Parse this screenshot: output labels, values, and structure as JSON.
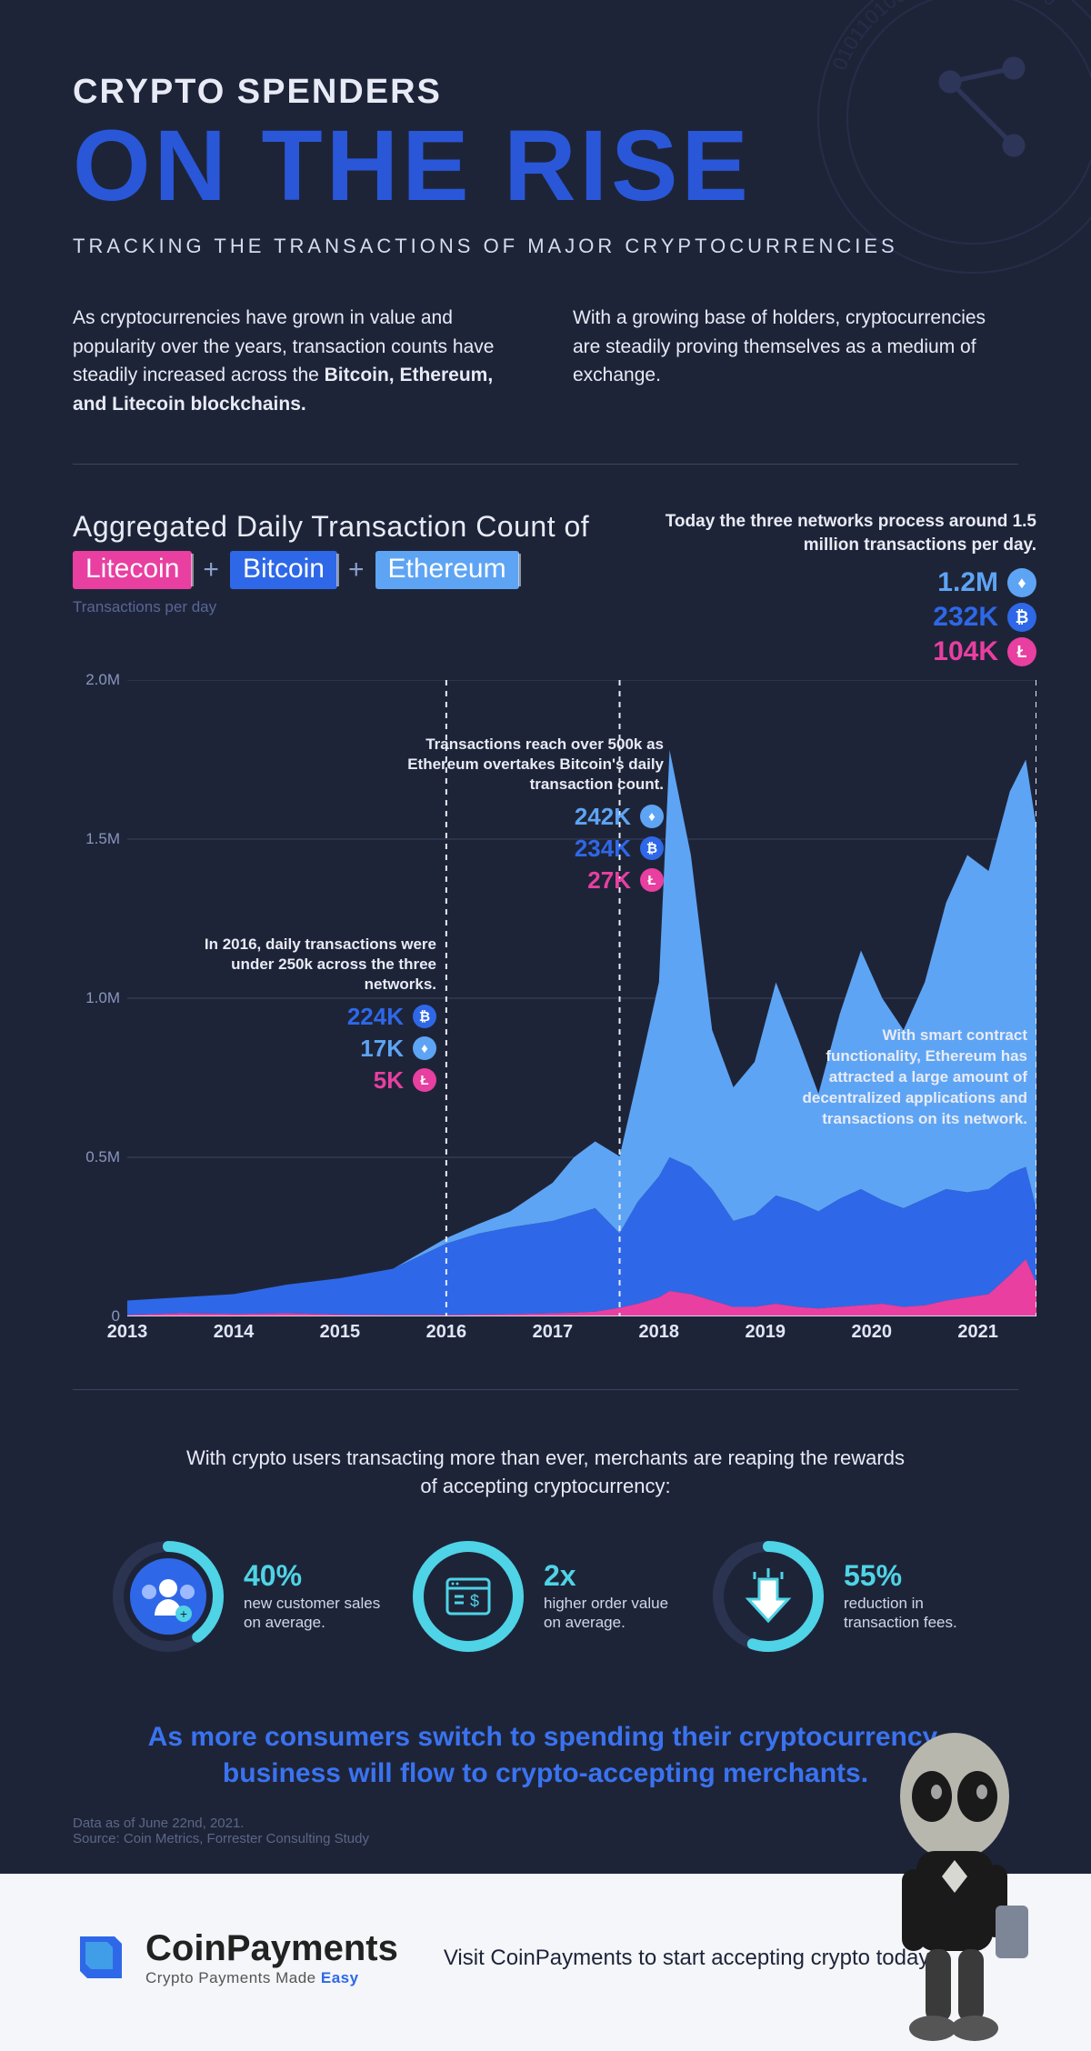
{
  "colors": {
    "bg": "#1e2438",
    "title_blue": "#2957d8",
    "bitcoin": "#2e68e8",
    "ethereum": "#5ea4f4",
    "litecoin": "#e83fa1",
    "cyan": "#4fd3e6",
    "grid": "#3a445f",
    "text": "#e8ebf5",
    "muted": "#8896bc"
  },
  "header": {
    "pre": "CRYPTO SPENDERS",
    "main": "ON THE RISE",
    "sub": "TRACKING THE TRANSACTIONS OF MAJOR CRYPTOCURRENCIES"
  },
  "intro": {
    "left_a": "As cryptocurrencies have grown in value and popularity over the years, transaction counts have steadily increased across the ",
    "left_b": "Bitcoin, Ethereum, and Litecoin blockchains.",
    "right": "With a growing base of holders, cryptocurrencies are steadily proving themselves as a medium of exchange."
  },
  "chart": {
    "title": "Aggregated Daily Transaction Count of",
    "pills": [
      {
        "label": "Litecoin",
        "color": "#e83fa1"
      },
      {
        "label": "Bitcoin",
        "color": "#2e68e8"
      },
      {
        "label": "Ethereum",
        "color": "#5ea4f4"
      }
    ],
    "y_axis_label": "Transactions per day",
    "y_ticks": [
      "0",
      "0.5M",
      "1.0M",
      "1.5M",
      "2.0M"
    ],
    "y_max": 2.0,
    "x_years": [
      "2013",
      "2014",
      "2015",
      "2016",
      "2017",
      "2018",
      "2019",
      "2020",
      "2021"
    ],
    "today": {
      "lead": "Today the three networks process around 1.5 million transactions per day.",
      "stats": [
        {
          "val": "1.2M",
          "sym": "♦",
          "color": "#5ea4f4"
        },
        {
          "val": "232K",
          "sym": "₿",
          "color": "#2e68e8"
        },
        {
          "val": "104K",
          "sym": "Ł",
          "color": "#e83fa1"
        }
      ]
    },
    "mid": {
      "lead": "Transactions reach over 500k as Ethereum overtakes Bitcoin's daily transaction count.",
      "stats": [
        {
          "val": "242K",
          "sym": "♦",
          "color": "#5ea4f4"
        },
        {
          "val": "234K",
          "sym": "₿",
          "color": "#2e68e8"
        },
        {
          "val": "27K",
          "sym": "Ł",
          "color": "#e83fa1"
        }
      ]
    },
    "early": {
      "lead": "In 2016, daily transactions were under 250k across the three networks.",
      "stats": [
        {
          "val": "224K",
          "sym": "₿",
          "color": "#2e68e8"
        },
        {
          "val": "17K",
          "sym": "♦",
          "color": "#5ea4f4"
        },
        {
          "val": "5K",
          "sym": "Ł",
          "color": "#e83fa1"
        }
      ]
    },
    "blurb": "With smart contract functionality, Ethereum has attracted a large amount of decentralized applications and transactions on its network.",
    "series": {
      "note": "stacked totals in millions — litecoin bottom, bitcoin mid, ethereum top",
      "x_index": [
        0,
        0.5,
        1,
        1.5,
        2,
        2.5,
        3,
        3.3,
        3.6,
        4,
        4.2,
        4.4,
        4.63,
        4.8,
        5,
        5.1,
        5.3,
        5.5,
        5.7,
        5.9,
        6.1,
        6.3,
        6.5,
        6.7,
        6.9,
        7.1,
        7.3,
        7.5,
        7.7,
        7.9,
        8.1,
        8.3,
        8.45,
        8.55
      ],
      "litecoin_top": [
        0.005,
        0.01,
        0.008,
        0.01,
        0.006,
        0.005,
        0.005,
        0.006,
        0.007,
        0.01,
        0.012,
        0.015,
        0.027,
        0.04,
        0.06,
        0.08,
        0.07,
        0.05,
        0.03,
        0.03,
        0.04,
        0.03,
        0.025,
        0.03,
        0.035,
        0.04,
        0.03,
        0.035,
        0.05,
        0.06,
        0.07,
        0.13,
        0.18,
        0.104
      ],
      "bitcoin_top": [
        0.05,
        0.06,
        0.07,
        0.1,
        0.12,
        0.15,
        0.229,
        0.26,
        0.28,
        0.3,
        0.32,
        0.34,
        0.261,
        0.36,
        0.44,
        0.5,
        0.47,
        0.4,
        0.3,
        0.32,
        0.38,
        0.36,
        0.33,
        0.37,
        0.4,
        0.365,
        0.34,
        0.37,
        0.4,
        0.39,
        0.4,
        0.45,
        0.47,
        0.336
      ],
      "ethereum_top": [
        0.05,
        0.06,
        0.07,
        0.1,
        0.12,
        0.15,
        0.246,
        0.29,
        0.33,
        0.42,
        0.5,
        0.55,
        0.503,
        0.75,
        1.05,
        1.78,
        1.45,
        0.9,
        0.72,
        0.8,
        1.05,
        0.88,
        0.7,
        0.95,
        1.15,
        1.0,
        0.9,
        1.05,
        1.3,
        1.45,
        1.4,
        1.65,
        1.75,
        1.536
      ]
    },
    "vlines_x": [
      3.0,
      4.63,
      8.55
    ]
  },
  "merchants": {
    "lead": "With crypto users transacting more than ever, merchants are reaping the rewards of accepting cryptocurrency:",
    "items": [
      {
        "big": "40%",
        "sub": "new customer sales on average.",
        "pct": 40,
        "icon": "users"
      },
      {
        "big": "2x",
        "sub": "higher order value on average.",
        "pct": 100,
        "icon": "browser"
      },
      {
        "big": "55%",
        "sub": "reduction in transaction fees.",
        "pct": 55,
        "icon": "arrow-down"
      }
    ],
    "ring_fg": "#4fd3e6",
    "ring_bg": "#2a3350",
    "ring_fill": "#2e68e8"
  },
  "tagline": "As more consumers switch to spending their cryptocurrency, business will flow to crypto-accepting merchants.",
  "source": {
    "date": "Data as of June 22nd, 2021.",
    "src": "Source: Coin Metrics, Forrester Consulting Study"
  },
  "footer": {
    "brand": "CoinPayments",
    "slogan_a": "Crypto Payments Made ",
    "slogan_b": "Easy",
    "text": "Visit CoinPayments to start accepting crypto today."
  }
}
